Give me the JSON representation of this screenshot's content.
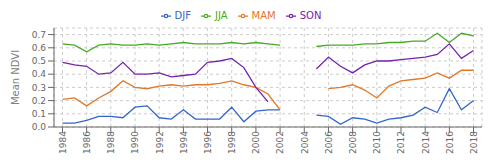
{
  "chart_data": {
    "type": "line",
    "ylabel": "Mean NDVI",
    "x": [
      1984,
      1985,
      1986,
      1987,
      1988,
      1989,
      1990,
      1991,
      1992,
      1993,
      1994,
      1995,
      1996,
      1997,
      1998,
      1999,
      2000,
      2001,
      2002,
      2003,
      2004,
      2005,
      2006,
      2007,
      2008,
      2009,
      2010,
      2011,
      2012,
      2013,
      2014,
      2015,
      2016,
      2017,
      2018
    ],
    "xlim": [
      1983.3,
      2018.7
    ],
    "xticks": [
      1984,
      1986,
      1988,
      1990,
      1992,
      1994,
      1996,
      1998,
      2000,
      2002,
      2004,
      2006,
      2008,
      2010,
      2012,
      2014,
      2016,
      2018
    ],
    "ylim": [
      0.0,
      0.75
    ],
    "yticks": [
      {
        "value": 0,
        "label": "0.0"
      },
      0.1,
      0.2,
      0.3,
      0.4,
      0.5,
      0.6,
      0.7
    ],
    "grid": true,
    "legend": "top",
    "series": [
      {
        "name": "DJF",
        "color": "#3366cc",
        "values": [
          0.03,
          0.03,
          0.05,
          0.08,
          0.08,
          0.07,
          0.15,
          0.16,
          0.07,
          0.06,
          0.13,
          0.06,
          0.06,
          0.06,
          0.15,
          0.04,
          0.12,
          0.13,
          0.13,
          null,
          null,
          0.09,
          0.08,
          0.02,
          0.07,
          0.06,
          0.03,
          0.06,
          0.07,
          0.09,
          0.15,
          0.11,
          0.29,
          0.13,
          0.2
        ]
      },
      {
        "name": "MAM",
        "color": "#e07828",
        "values": [
          0.21,
          0.22,
          0.16,
          0.22,
          0.27,
          0.35,
          0.3,
          0.29,
          0.31,
          0.32,
          0.31,
          0.32,
          0.32,
          0.33,
          0.35,
          0.32,
          0.3,
          0.25,
          0.13,
          null,
          null,
          null,
          0.29,
          0.3,
          0.32,
          0.28,
          0.22,
          0.31,
          0.35,
          0.36,
          0.37,
          0.41,
          0.37,
          0.43,
          0.43
        ]
      },
      {
        "name": "JJA",
        "color": "#44aa22",
        "values": [
          0.63,
          0.62,
          0.57,
          0.62,
          0.63,
          0.62,
          0.62,
          0.63,
          0.62,
          0.63,
          0.64,
          0.63,
          0.63,
          0.63,
          0.64,
          0.63,
          0.64,
          0.63,
          0.62,
          null,
          null,
          0.61,
          0.62,
          0.62,
          0.62,
          0.63,
          0.63,
          0.64,
          0.64,
          0.65,
          0.65,
          0.71,
          0.64,
          0.71,
          0.69
        ]
      },
      {
        "name": "SON",
        "color": "#7722aa",
        "values": [
          0.49,
          0.47,
          0.46,
          0.4,
          0.41,
          0.49,
          0.4,
          0.4,
          0.41,
          0.38,
          0.39,
          0.4,
          0.49,
          0.5,
          0.52,
          0.45,
          0.3,
          0.19,
          null,
          null,
          null,
          0.44,
          0.53,
          0.46,
          0.41,
          0.47,
          0.5,
          0.5,
          0.51,
          0.52,
          0.53,
          0.55,
          0.63,
          0.52,
          0.58
        ]
      }
    ]
  }
}
